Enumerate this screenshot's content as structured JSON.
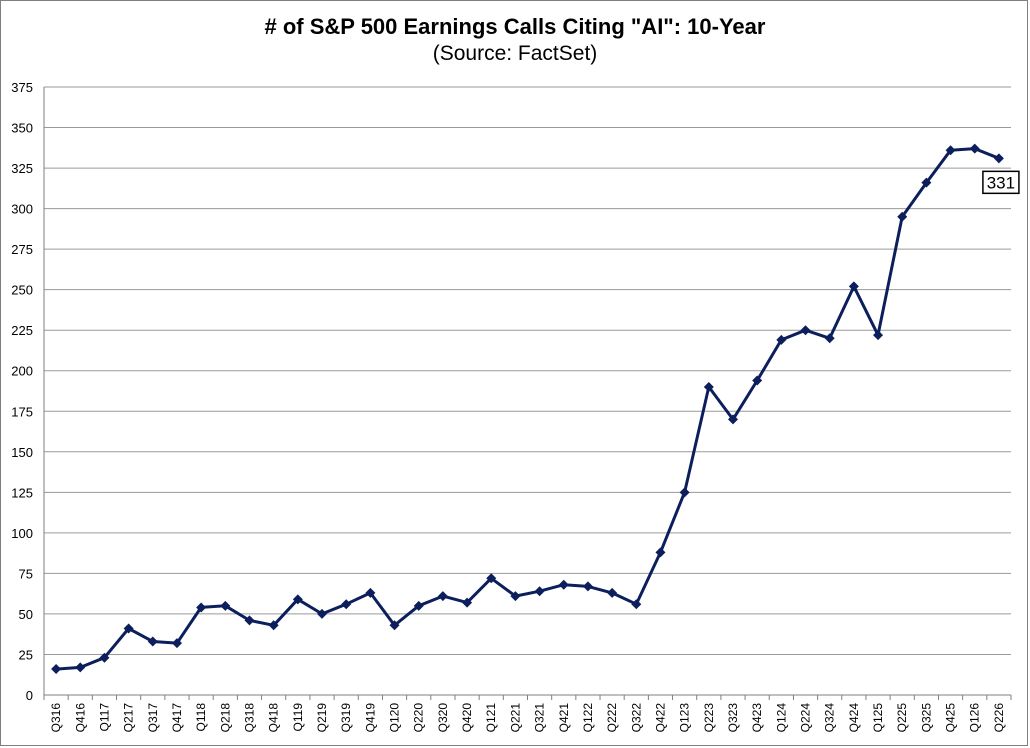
{
  "chart_data": {
    "type": "line",
    "title": "# of S&P 500 Earnings Calls Citing \"AI\": 10-Year",
    "subtitle": "(Source: FactSet)",
    "xlabel": "",
    "ylabel": "",
    "ylim": [
      0,
      375
    ],
    "yticks": [
      0,
      25,
      50,
      75,
      100,
      125,
      150,
      175,
      200,
      225,
      250,
      275,
      300,
      325,
      350,
      375
    ],
    "grid": true,
    "legend": "none",
    "categories": [
      "Q316",
      "Q416",
      "Q117",
      "Q217",
      "Q317",
      "Q417",
      "Q118",
      "Q218",
      "Q318",
      "Q418",
      "Q119",
      "Q219",
      "Q319",
      "Q419",
      "Q120",
      "Q220",
      "Q320",
      "Q420",
      "Q121",
      "Q221",
      "Q321",
      "Q421",
      "Q122",
      "Q222",
      "Q322",
      "Q422",
      "Q123",
      "Q223",
      "Q323",
      "Q423",
      "Q124",
      "Q224",
      "Q324",
      "Q424",
      "Q125",
      "Q225",
      "Q325",
      "Q425",
      "Q126",
      "Q226"
    ],
    "series": [
      {
        "values": [
          16,
          17,
          23,
          41,
          33,
          32,
          54,
          55,
          46,
          43,
          59,
          50,
          56,
          63,
          43,
          55,
          61,
          57,
          72,
          61,
          64,
          68,
          67,
          63,
          56,
          88,
          125,
          190,
          170,
          194,
          219,
          225,
          220,
          252,
          222,
          295,
          316,
          336,
          337,
          331
        ],
        "color": "#0c1f5c"
      }
    ],
    "annotations": [
      {
        "text": "331",
        "category": "Q226",
        "value": 331
      }
    ]
  }
}
